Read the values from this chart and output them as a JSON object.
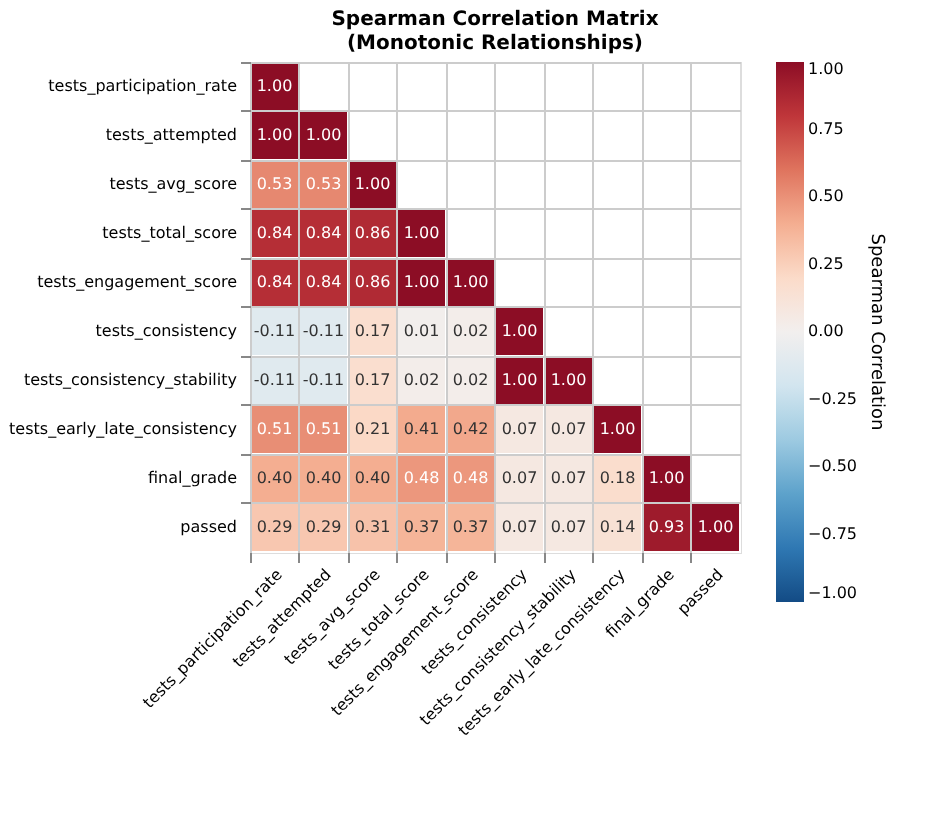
{
  "chart_data": {
    "type": "heatmap",
    "title": "Spearman Correlation Matrix\n(Monotonic Relationships)",
    "clabel": "Spearman Correlation",
    "categories": [
      "tests_participation_rate",
      "tests_attempted",
      "tests_avg_score",
      "tests_total_score",
      "tests_engagement_score",
      "tests_consistency",
      "tests_consistency_stability",
      "tests_early_late_consistency",
      "final_grade",
      "passed"
    ],
    "y_categories": [
      "tests_participation_rate",
      "tests_attempted",
      "tests_avg_score",
      "tests_total_score",
      "tests_engagement_score",
      "tests_consistency",
      "tests_consistency_stability",
      "tests_early_late_consistency",
      "final_grade",
      "passed"
    ],
    "cells": [
      [
        1.0,
        null,
        null,
        null,
        null,
        null,
        null,
        null,
        null,
        null
      ],
      [
        1.0,
        1.0,
        null,
        null,
        null,
        null,
        null,
        null,
        null,
        null
      ],
      [
        0.53,
        0.53,
        1.0,
        null,
        null,
        null,
        null,
        null,
        null,
        null
      ],
      [
        0.84,
        0.84,
        0.86,
        1.0,
        null,
        null,
        null,
        null,
        null,
        null
      ],
      [
        0.84,
        0.84,
        0.86,
        1.0,
        1.0,
        null,
        null,
        null,
        null,
        null
      ],
      [
        -0.11,
        -0.11,
        0.17,
        0.01,
        0.02,
        1.0,
        null,
        null,
        null,
        null
      ],
      [
        -0.11,
        -0.11,
        0.17,
        0.02,
        0.02,
        1.0,
        1.0,
        null,
        null,
        null
      ],
      [
        0.51,
        0.51,
        0.21,
        0.41,
        0.42,
        0.07,
        0.07,
        1.0,
        null,
        null
      ],
      [
        0.4,
        0.4,
        0.4,
        0.48,
        0.48,
        0.07,
        0.07,
        0.18,
        1.0,
        null
      ],
      [
        0.29,
        0.29,
        0.31,
        0.37,
        0.37,
        0.07,
        0.07,
        0.14,
        0.93,
        1.0
      ]
    ],
    "clim": [
      -1.0,
      1.0
    ],
    "cticks": [
      {
        "value": -1,
        "label": "−1.00"
      },
      {
        "value": -0.75,
        "label": "−0.75"
      },
      {
        "value": -0.5,
        "label": "−0.50"
      },
      {
        "value": -0.25,
        "label": "−0.25"
      },
      {
        "value": 0,
        "label": "0.00"
      },
      {
        "value": 0.25,
        "label": "0.25"
      },
      {
        "value": 0.5,
        "label": "0.50"
      },
      {
        "value": 0.75,
        "label": "0.75"
      },
      {
        "value": 1,
        "label": "1.00"
      }
    ],
    "cell_labels": [
      [
        "1.00",
        null,
        null,
        null,
        null,
        null,
        null,
        null,
        null,
        null
      ],
      [
        "1.00",
        "1.00",
        null,
        null,
        null,
        null,
        null,
        null,
        null,
        null
      ],
      [
        "0.53",
        "0.53",
        "1.00",
        null,
        null,
        null,
        null,
        null,
        null,
        null
      ],
      [
        "0.84",
        "0.84",
        "0.86",
        "1.00",
        null,
        null,
        null,
        null,
        null,
        null
      ],
      [
        "0.84",
        "0.84",
        "0.86",
        "1.00",
        "1.00",
        null,
        null,
        null,
        null,
        null
      ],
      [
        "-0.11",
        "-0.11",
        "0.17",
        "0.01",
        "0.02",
        "1.00",
        null,
        null,
        null,
        null
      ],
      [
        "-0.11",
        "-0.11",
        "0.17",
        "0.02",
        "0.02",
        "1.00",
        "1.00",
        null,
        null,
        null
      ],
      [
        "0.51",
        "0.51",
        "0.21",
        "0.41",
        "0.42",
        "0.07",
        "0.07",
        "1.00",
        null,
        null
      ],
      [
        "0.40",
        "0.40",
        "0.40",
        "0.48",
        "0.48",
        "0.07",
        "0.07",
        "0.18",
        "1.00",
        null
      ],
      [
        "0.29",
        "0.29",
        "0.31",
        "0.37",
        "0.37",
        "0.07",
        "0.07",
        "0.14",
        "0.93",
        "1.00"
      ]
    ],
    "grid": true
  }
}
